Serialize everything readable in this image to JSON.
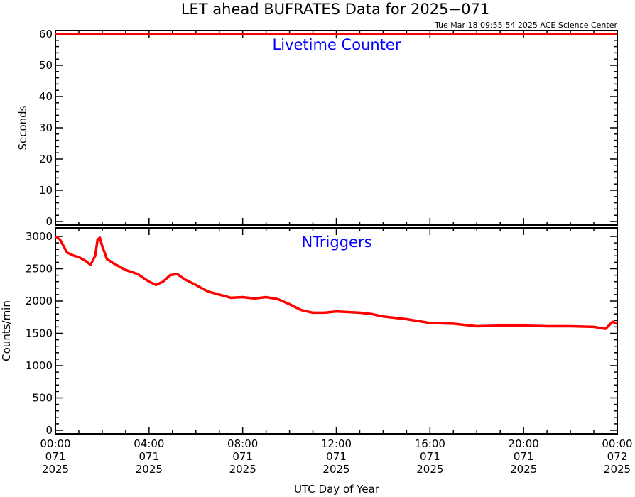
{
  "title": "LET ahead BUFRATES Data for 2025−071",
  "timestamp": "Tue Mar 18 09:55:54 2025 ACE Science Center",
  "xlabel": "UTC Day of Year",
  "colors": {
    "series": "#ff0000",
    "label": "#0000ff",
    "axes": "#000000"
  },
  "x_ticks": [
    {
      "hours": 0,
      "time": "00:00",
      "doy": "071",
      "year": "2025"
    },
    {
      "hours": 4,
      "time": "04:00",
      "doy": "071",
      "year": "2025"
    },
    {
      "hours": 8,
      "time": "08:00",
      "doy": "071",
      "year": "2025"
    },
    {
      "hours": 12,
      "time": "12:00",
      "doy": "071",
      "year": "2025"
    },
    {
      "hours": 16,
      "time": "16:00",
      "doy": "071",
      "year": "2025"
    },
    {
      "hours": 20,
      "time": "20:00",
      "doy": "071",
      "year": "2025"
    },
    {
      "hours": 24,
      "time": "00:00",
      "doy": "072",
      "year": "2025"
    }
  ],
  "chart_data": [
    {
      "type": "line",
      "panel_label": "Livetime Counter",
      "ylabel": "Seconds",
      "xlim_hours": [
        0,
        24
      ],
      "ylim": [
        0,
        60
      ],
      "yticks": [
        0,
        10,
        20,
        30,
        40,
        50,
        60
      ],
      "series": [
        {
          "x_hours": [
            0,
            24
          ],
          "values": [
            60,
            60
          ]
        }
      ]
    },
    {
      "type": "line",
      "panel_label": "NTriggers",
      "ylabel": "Counts/min",
      "xlim_hours": [
        0,
        24
      ],
      "ylim": [
        0,
        3000
      ],
      "yticks": [
        0,
        500,
        1000,
        1500,
        2000,
        2500,
        3000
      ],
      "series": [
        {
          "x_hours": [
            0,
            0.2,
            0.5,
            0.8,
            1.0,
            1.3,
            1.5,
            1.7,
            1.8,
            1.9,
            2.0,
            2.2,
            2.5,
            3.0,
            3.5,
            4.0,
            4.3,
            4.6,
            4.9,
            5.2,
            5.5,
            6.0,
            6.5,
            7.0,
            7.5,
            8.0,
            8.5,
            9.0,
            9.5,
            10.0,
            10.5,
            11.0,
            11.5,
            12.0,
            12.5,
            13.0,
            13.5,
            14.0,
            15.0,
            16.0,
            17.0,
            18.0,
            19.0,
            20.0,
            21.0,
            22.0,
            23.0,
            23.5,
            23.8,
            24.0
          ],
          "values": [
            3000,
            2950,
            2750,
            2700,
            2680,
            2620,
            2560,
            2700,
            2950,
            2980,
            2850,
            2650,
            2580,
            2480,
            2420,
            2300,
            2250,
            2300,
            2400,
            2420,
            2340,
            2250,
            2150,
            2100,
            2050,
            2060,
            2040,
            2060,
            2030,
            1950,
            1860,
            1820,
            1820,
            1840,
            1830,
            1820,
            1800,
            1760,
            1720,
            1660,
            1650,
            1610,
            1620,
            1620,
            1610,
            1610,
            1600,
            1570,
            1680,
            1650
          ]
        }
      ]
    }
  ]
}
